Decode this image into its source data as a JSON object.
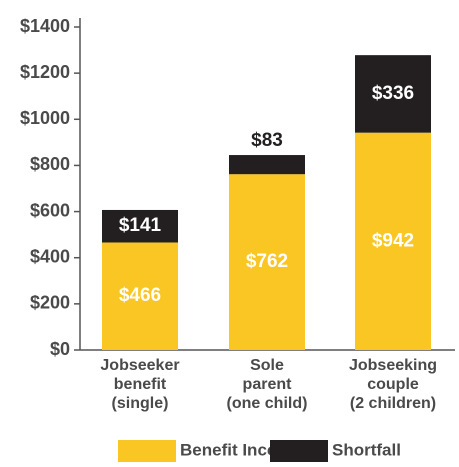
{
  "chart_data": {
    "type": "stacked-bar",
    "categories": [
      [
        "Jobseeker",
        "benefit",
        "(single)"
      ],
      [
        "Sole",
        "parent",
        "(one child)"
      ],
      [
        "Jobseeking",
        "couple",
        "(2 children)"
      ]
    ],
    "series": [
      {
        "name": "Benefit Income",
        "color": "#f9c623",
        "values": [
          466,
          762,
          942
        ],
        "value_labels": [
          "$466",
          "$762",
          "$942"
        ]
      },
      {
        "name": "Shortfall",
        "color": "#231f20",
        "values": [
          141,
          83,
          336
        ],
        "value_labels": [
          "$141",
          "$83",
          "$336"
        ]
      }
    ],
    "ylim": [
      0,
      1400
    ],
    "yticks": [
      {
        "value": 0,
        "label": "$0"
      },
      {
        "value": 200,
        "label": "$200"
      },
      {
        "value": 400,
        "label": "$400"
      },
      {
        "value": 600,
        "label": "$600"
      },
      {
        "value": 800,
        "label": "$800"
      },
      {
        "value": 1000,
        "label": "$1000"
      },
      {
        "value": 1200,
        "label": "$1200"
      },
      {
        "value": 1400,
        "label": "$1400"
      }
    ],
    "legend": "bottom"
  }
}
